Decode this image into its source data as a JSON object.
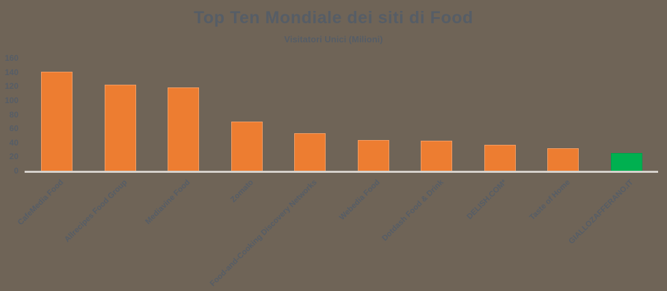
{
  "page": {
    "background_color": "#6F6457",
    "text_color": "#565D66"
  },
  "chart_data": {
    "type": "bar",
    "title": "Top Ten Mondiale dei siti di Food",
    "subtitle": "Visitatori Unici (Milioni)",
    "categories": [
      "CafeMedia Food",
      "Allrecipes Food Group",
      "Mediavine Food",
      "Zomato",
      "Food-and-Cooking Discovery Networks",
      "Webedia Food",
      "Dotdash Food & Drink",
      "DELISH.COM*",
      "Taste of Home",
      "GIALLOZAFFERANO.IT"
    ],
    "values": [
      141,
      122,
      118,
      70,
      53,
      44,
      43,
      37,
      32,
      25
    ],
    "xlabel": "",
    "ylabel": "",
    "ylim": [
      0,
      160
    ],
    "yticks": [
      0,
      20,
      40,
      60,
      80,
      100,
      120,
      140,
      160
    ],
    "grid": false,
    "legend_position": "none",
    "x_labels_rotation_deg": -45,
    "bar_color": "#ED7D31",
    "bar_border_color": "#F59D62",
    "highlight_index": 9,
    "highlight_color": "#00B050",
    "highlight_border_color": "#00A14B",
    "axis_line_color": "#D7D2CD",
    "text_color": "#565D66",
    "background_color": "#6F6457"
  }
}
